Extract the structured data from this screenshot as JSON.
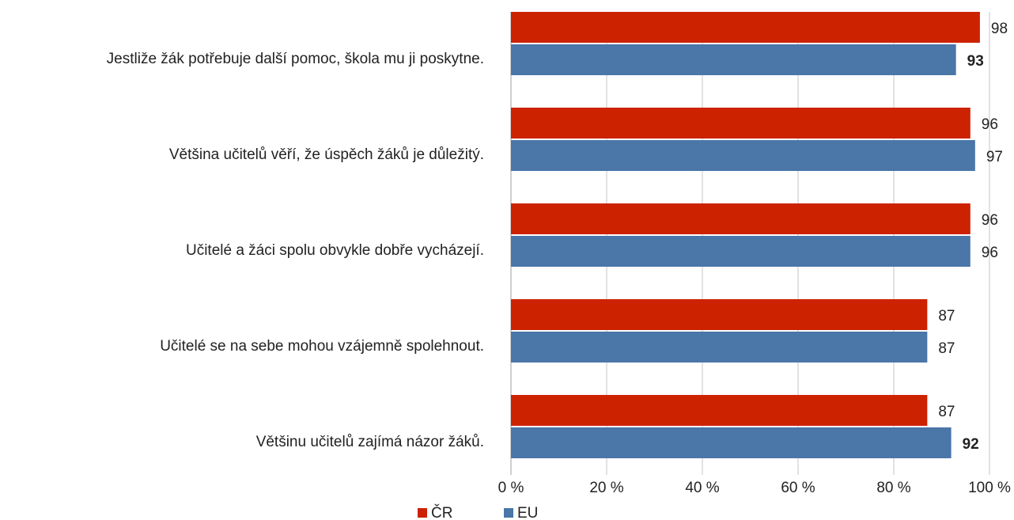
{
  "chart_data": {
    "type": "bar",
    "orientation": "horizontal",
    "categories": [
      "Jestliže žák potřebuje další pomoc, škola mu ji poskytne.",
      "Většina učitelů věří, že úspěch žáků je důležitý.",
      "Učitelé a žáci spolu obvykle dobře vycházejí.",
      "Učitelé se na sebe mohou vzájemně spolehnout.",
      "Většinu učitelů zajímá názor žáků."
    ],
    "series": [
      {
        "name": "ČR",
        "color": "#cc2200",
        "values": [
          98,
          96,
          96,
          87,
          87
        ]
      },
      {
        "name": "EU",
        "color": "#4a76a8",
        "values": [
          93,
          97,
          96,
          87,
          92
        ],
        "bold": [
          true,
          false,
          false,
          false,
          true
        ]
      }
    ],
    "xlim": [
      0,
      100
    ],
    "xticks": [
      {
        "value": 0,
        "label": "0 %"
      },
      {
        "value": 20,
        "label": "20 %"
      },
      {
        "value": 40,
        "label": "40 %"
      },
      {
        "value": 60,
        "label": "60 %"
      },
      {
        "value": 80,
        "label": "80 %"
      },
      {
        "value": 100,
        "label": "100 %"
      }
    ],
    "grid": true,
    "legend": "bottom"
  }
}
